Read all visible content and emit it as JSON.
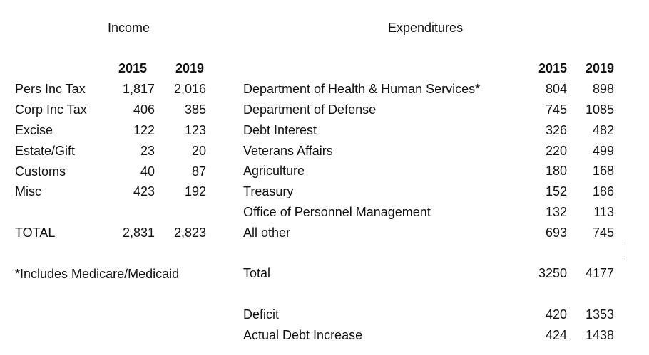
{
  "income": {
    "title": "Income",
    "year_a": "2015",
    "year_b": "2019",
    "rows": [
      {
        "label": "Pers Inc Tax",
        "a": "1,817",
        "b": "2,016"
      },
      {
        "label": "Corp Inc Tax",
        "a": "406",
        "b": "385"
      },
      {
        "label": "Excise",
        "a": "122",
        "b": "123"
      },
      {
        "label": "Estate/Gift",
        "a": "23",
        "b": "20"
      },
      {
        "label": "Customs",
        "a": "40",
        "b": "87"
      },
      {
        "label": "Misc",
        "a": "423",
        "b": "192"
      }
    ],
    "total": {
      "label": "TOTAL",
      "a": "2,831",
      "b": "2,823"
    },
    "footnote": "*Includes Medicare/Medicaid"
  },
  "expenditures": {
    "title": "Expenditures",
    "year_a": "2015",
    "year_b": "2019",
    "rows": [
      {
        "label": "Department of Health & Human Services*",
        "a": "804",
        "b": "898"
      },
      {
        "label": "Department of Defense",
        "a": "745",
        "b": "1085"
      },
      {
        "label": "Debt Interest",
        "a": "326",
        "b": "482"
      },
      {
        "label": "Veterans Affairs",
        "a": "220",
        "b": "499"
      },
      {
        "label": "Agriculture",
        "a": "180",
        "b": "168"
      },
      {
        "label": "Treasury",
        "a": "152",
        "b": "186"
      },
      {
        "label": "Office of Personnel Management",
        "a": "132",
        "b": "113"
      },
      {
        "label": "All other",
        "a": "693",
        "b": "745"
      }
    ],
    "total": {
      "label": "Total",
      "a": "3250",
      "b": "4177"
    },
    "deficit": {
      "label": "Deficit",
      "a": "420",
      "b": "1353"
    },
    "debt_increase": {
      "label": "Actual Debt Increase",
      "a": "424",
      "b": "1438"
    }
  }
}
